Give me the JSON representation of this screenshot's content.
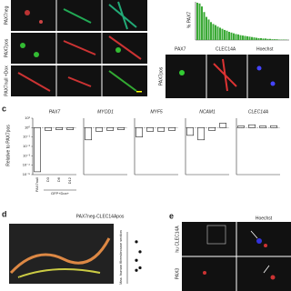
{
  "panel_a": {
    "row_labels": [
      "PAX7neg",
      "PAX7pos",
      "PAX7null +Dox"
    ]
  },
  "panel_b": {
    "type": "bar",
    "y_label": "% PAX7",
    "color": "#3aa935",
    "ylim": [
      0,
      100
    ],
    "values": [
      100,
      98,
      90,
      75,
      62,
      55,
      48,
      43,
      40,
      36,
      33,
      30,
      27,
      25,
      22,
      20,
      18,
      16,
      15,
      13,
      12,
      11,
      10,
      9,
      8,
      7,
      6,
      5,
      5,
      4,
      4,
      3,
      3,
      2,
      2,
      2,
      1,
      1,
      1,
      1
    ]
  },
  "panel_b_images": {
    "row_label": "PAX7pos",
    "channels": [
      "PAX7",
      "CLEC14A",
      "Hoechst"
    ]
  },
  "panel_c": {
    "letter": "c",
    "type": "bar",
    "y_label": "Relative to PAX7pos",
    "log_scale": true,
    "ylim": [
      1e-05,
      10
    ],
    "yticks": [
      {
        "value": 10,
        "label": "10¹"
      },
      {
        "value": 1,
        "label": "10⁰"
      },
      {
        "value": 0.1,
        "label": "10⁻¹"
      },
      {
        "value": 0.01,
        "label": "10⁻²"
      },
      {
        "value": 0.001,
        "label": "10⁻³"
      },
      {
        "value": 0.0001,
        "label": "10⁻⁴"
      },
      {
        "value": 1e-05,
        "label": "10⁻⁵"
      }
    ],
    "categories": [
      "PAX7null",
      "D3",
      "D6",
      "D12"
    ],
    "group_label": "GFP+Dox+",
    "series": [
      {
        "name": "PAX7",
        "values": [
          2e-05,
          0.5,
          0.6,
          0.6
        ]
      },
      {
        "name": "MYOD1",
        "values": [
          0.05,
          0.4,
          0.5,
          0.6
        ]
      },
      {
        "name": "MYF5",
        "values": [
          0.1,
          0.4,
          0.4,
          0.5
        ]
      },
      {
        "name": "NCAM1",
        "values": [
          0.15,
          0.05,
          0.5,
          3
        ]
      },
      {
        "name": "CLEC14A",
        "values": [
          1.5,
          2,
          1.5,
          1.6
        ]
      }
    ]
  },
  "panel_d": {
    "letter": "d",
    "title": "PAX7neg-CLEC14Apos",
    "image_label": "hu LAM A/C",
    "type": "scatter",
    "y_label": "Max. human fibers/mouse section",
    "ylim": [
      0,
      100
    ],
    "values": [
      82,
      62,
      45,
      30,
      25
    ]
  },
  "panel_e": {
    "letter": "e",
    "column_label": "Hoechst",
    "row_labels": [
      "hu CLEC14A",
      "PAX3"
    ]
  }
}
